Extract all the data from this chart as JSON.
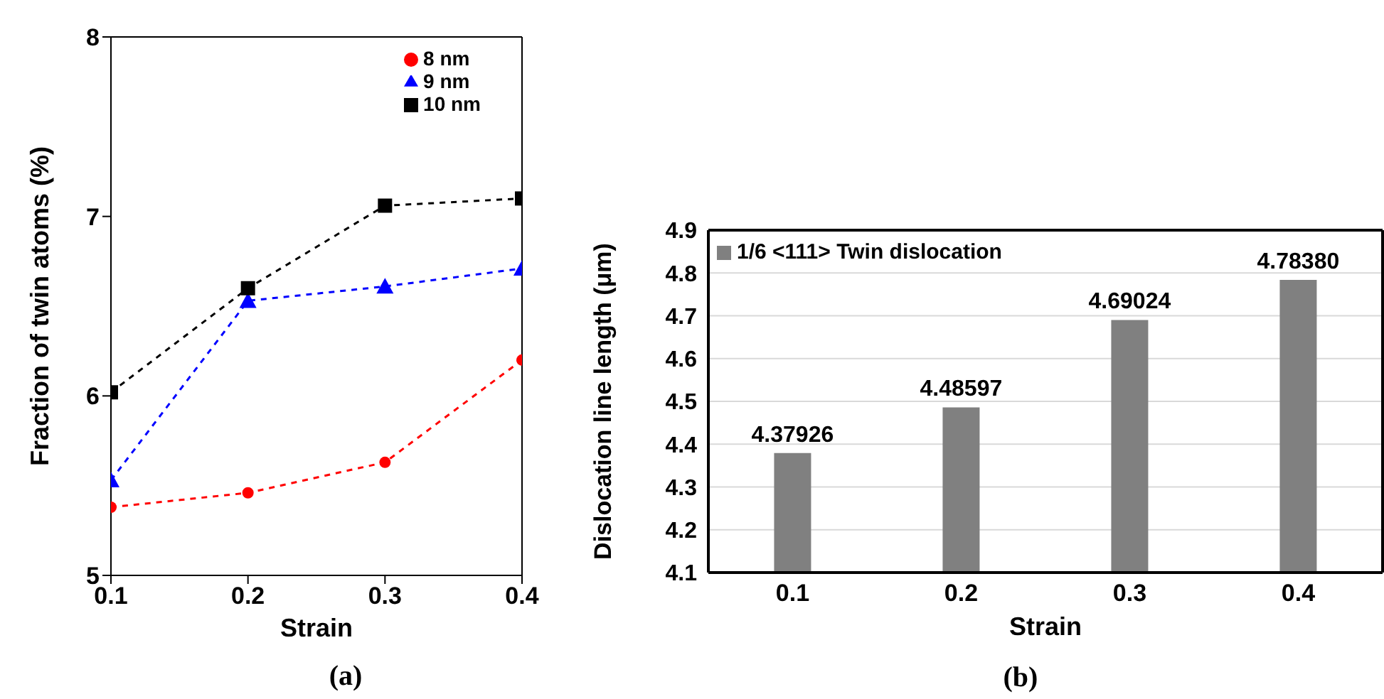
{
  "chart_data": [
    {
      "type": "line",
      "xlabel": "Strain",
      "ylabel": "Fraction of twin atoms (%)",
      "x": [
        0.1,
        0.2,
        0.3,
        0.4
      ],
      "xlim": [
        0.1,
        0.4
      ],
      "xticks": [
        0.1,
        0.2,
        0.3,
        0.4
      ],
      "ylim": [
        5,
        8
      ],
      "yticks": [
        5,
        6,
        7,
        8
      ],
      "grid": false,
      "legend": "top right",
      "line_style": "dashed",
      "annotations": [
        "(a)"
      ],
      "series": [
        {
          "name": "8 nm",
          "color": "#ff0000",
          "marker": "circle",
          "values": [
            5.38,
            5.46,
            5.63,
            6.2
          ]
        },
        {
          "name": "9 nm",
          "color": "#0000ff",
          "marker": "triangle",
          "values": [
            5.53,
            6.53,
            6.61,
            6.71
          ]
        },
        {
          "name": "10 nm",
          "color": "#000000",
          "marker": "square",
          "values": [
            6.02,
            6.6,
            7.06,
            7.1
          ]
        }
      ]
    },
    {
      "type": "bar",
      "xlabel": "Strain",
      "ylabel": "Dislocation line length (μm)",
      "categories": [
        "0.1",
        "0.2",
        "0.3",
        "0.4"
      ],
      "ylim": [
        4.1,
        4.9
      ],
      "yticks": [
        {
          "value": 4.1,
          "label": "4.1"
        },
        {
          "value": 4.2,
          "label": "4.2"
        },
        {
          "value": 4.3,
          "label": "4.3"
        },
        {
          "value": 4.4,
          "label": "4.4"
        },
        {
          "value": 4.5,
          "label": "4.5"
        },
        {
          "value": 4.6,
          "label": "4.6"
        },
        {
          "value": 4.7,
          "label": "4.7"
        },
        {
          "value": 4.8,
          "label": "4.8"
        },
        {
          "value": 4.9,
          "label": "4.9"
        }
      ],
      "grid": "y",
      "legend": "top left",
      "annotations": [
        "(b)"
      ],
      "series": [
        {
          "name": "1/6 <111> Twin dislocation",
          "color": "#808080",
          "values": [
            4.37926,
            4.48597,
            4.69024,
            4.7838
          ],
          "value_labels": [
            "4.37926",
            "4.48597",
            "4.69024",
            "4.78380"
          ]
        }
      ]
    }
  ]
}
